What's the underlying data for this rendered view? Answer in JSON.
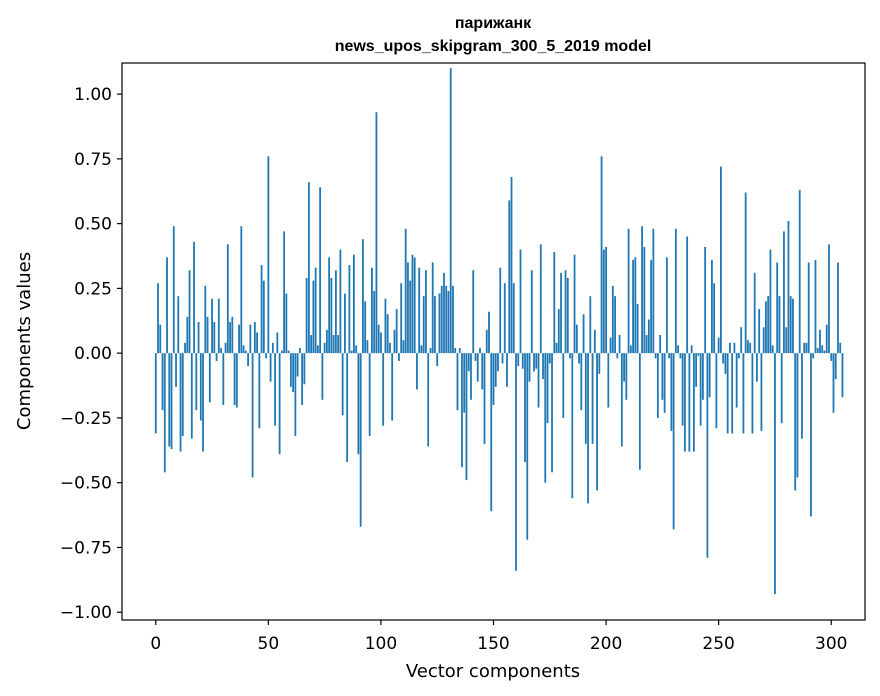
{
  "chart_data": {
    "type": "bar",
    "title": "парижанк",
    "subtitle": "news_upos_skipgram_300_5_2019 model",
    "xlabel": "Vector components",
    "ylabel": "Components values",
    "xlim": [
      -15,
      315
    ],
    "ylim": [
      -1.03,
      1.12
    ],
    "grid": false,
    "color": "#1f77b4",
    "x_ticks": [
      {
        "value": 0,
        "label": "0"
      },
      {
        "value": 50,
        "label": "50"
      },
      {
        "value": 100,
        "label": "100"
      },
      {
        "value": 150,
        "label": "150"
      },
      {
        "value": 200,
        "label": "200"
      },
      {
        "value": 250,
        "label": "250"
      },
      {
        "value": 300,
        "label": "300"
      }
    ],
    "y_ticks": [
      {
        "value": 1.0,
        "label": "1.00"
      },
      {
        "value": 0.75,
        "label": "0.75"
      },
      {
        "value": 0.5,
        "label": "0.50"
      },
      {
        "value": 0.25,
        "label": "0.25"
      },
      {
        "value": 0.0,
        "label": "0.00"
      },
      {
        "value": -0.25,
        "label": "−0.25"
      },
      {
        "value": -0.5,
        "label": "−0.50"
      },
      {
        "value": -0.75,
        "label": "−0.75"
      },
      {
        "value": -1.0,
        "label": "−1.00"
      }
    ],
    "values": [
      -0.31,
      0.27,
      0.11,
      -0.22,
      -0.46,
      0.37,
      -0.36,
      -0.37,
      0.49,
      -0.13,
      0.22,
      -0.38,
      -0.32,
      0.04,
      0.14,
      0.32,
      -0.33,
      0.43,
      -0.22,
      0.12,
      -0.26,
      -0.38,
      0.26,
      0.14,
      -0.19,
      0.21,
      0.12,
      -0.03,
      0.21,
      0.02,
      -0.2,
      0.04,
      0.42,
      0.12,
      0.14,
      -0.2,
      -0.21,
      0.11,
      0.49,
      0.03,
      0.01,
      -0.05,
      0.11,
      -0.48,
      0.12,
      0.08,
      -0.29,
      0.34,
      0.28,
      -0.02,
      0.76,
      -0.11,
      0.04,
      -0.28,
      0.08,
      -0.39,
      0.01,
      0.47,
      0.23,
      0.01,
      -0.13,
      -0.15,
      -0.32,
      -0.09,
      0.02,
      -0.2,
      -0.12,
      0.29,
      0.66,
      0.07,
      0.28,
      0.33,
      0.03,
      0.64,
      -0.18,
      0.04,
      0.09,
      0.37,
      0.29,
      0.07,
      0.32,
      0.07,
      0.4,
      -0.24,
      0.23,
      -0.42,
      0.34,
      0.01,
      0.38,
      0.03,
      -0.39,
      -0.67,
      0.44,
      0.2,
      0.05,
      -0.32,
      0.33,
      0.24,
      0.93,
      0.11,
      0.08,
      -0.28,
      0.21,
      0.15,
      0.04,
      -0.26,
      0.09,
      0.17,
      -0.03,
      0.27,
      0.05,
      0.48,
      0.35,
      0.28,
      0.38,
      0.37,
      -0.14,
      0.33,
      0.03,
      0.22,
      0.32,
      -0.36,
      0.02,
      0.35,
      0.22,
      -0.05,
      0.23,
      0.26,
      0.31,
      0.26,
      0.24,
      1.1,
      0.26,
      0.02,
      -0.22,
      0.02,
      -0.44,
      -0.23,
      -0.49,
      -0.07,
      -0.18,
      0.32,
      -0.03,
      -0.11,
      0.02,
      -0.14,
      -0.35,
      0.09,
      0.16,
      -0.61,
      -0.2,
      -0.13,
      -0.07,
      0.33,
      -0.04,
      0.27,
      -0.13,
      0.59,
      0.68,
      0.27,
      -0.84,
      -0.05,
      0.4,
      -0.06,
      -0.42,
      -0.72,
      -0.11,
      0.32,
      -0.07,
      -0.06,
      -0.21,
      0.42,
      -0.1,
      -0.5,
      -0.27,
      -0.04,
      -0.46,
      0.39,
      0.04,
      0.17,
      0.31,
      -0.25,
      0.32,
      0.29,
      -0.02,
      -0.56,
      0.38,
      0.11,
      -0.04,
      -0.22,
      0.15,
      -0.35,
      -0.58,
      0.22,
      -0.35,
      0.09,
      -0.53,
      -0.08,
      0.76,
      0.4,
      0.41,
      -0.21,
      0.06,
      0.26,
      0.22,
      -0.02,
      0.07,
      -0.36,
      -0.11,
      -0.18,
      0.48,
      0.03,
      0.36,
      0.37,
      0.19,
      -0.45,
      0.49,
      0.41,
      0.07,
      0.13,
      0.36,
      0.48,
      -0.02,
      -0.25,
      0.07,
      -0.18,
      -0.23,
      0.37,
      -0.02,
      -0.3,
      -0.68,
      0.48,
      0.03,
      -0.02,
      -0.28,
      -0.38,
      0.45,
      -0.38,
      0.03,
      -0.38,
      -0.13,
      -0.01,
      -0.28,
      -0.18,
      0.41,
      -0.79,
      -0.17,
      0.36,
      0.27,
      -0.29,
      0.06,
      0.72,
      -0.04,
      -0.08,
      -0.31,
      0.04,
      -0.31,
      0.04,
      -0.21,
      -0.02,
      0.1,
      -0.31,
      0.62,
      0.05,
      0.04,
      -0.31,
      0.31,
      -0.11,
      0.17,
      -0.3,
      0.1,
      0.2,
      0.22,
      0.4,
      0.03,
      -0.93,
      0.35,
      0.22,
      -0.27,
      0.47,
      0.1,
      0.51,
      0.22,
      0.21,
      -0.53,
      -0.48,
      0.63,
      -0.33,
      0.04,
      0.04,
      0.35,
      -0.63,
      -0.02,
      0.36,
      0.02,
      0.09,
      0.03,
      0.01,
      0.11,
      0.42,
      -0.03,
      -0.23,
      -0.1,
      0.35,
      0.04,
      -0.17
    ]
  }
}
